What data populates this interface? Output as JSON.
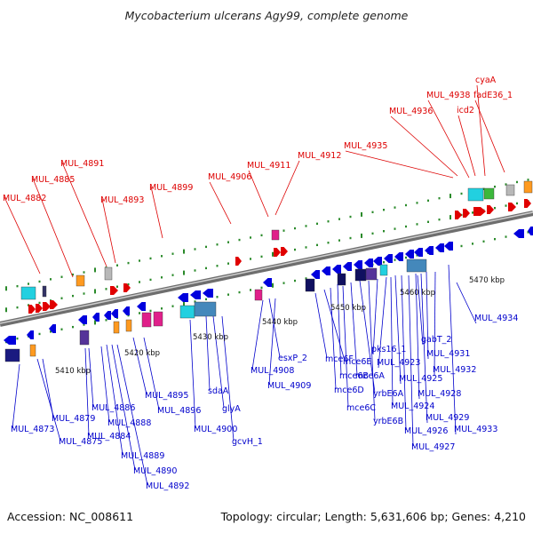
{
  "title": "Mycobacterium ulcerans Agy99, complete genome",
  "footer": {
    "accession": "Accession: NC_008611",
    "topology": "Topology: circular; Length: 5,631,606 bp; Genes: 4,210"
  },
  "colors": {
    "forward": "#dd0000",
    "reverse": "#0000cc",
    "backbone": "#808080",
    "tick": "#2a8a2a"
  },
  "scale_labels": [
    "5410 kbp",
    "5420 kbp",
    "5430 kbp",
    "5440 kbp",
    "5450 kbp",
    "5460 kbp",
    "5470 kbp"
  ],
  "forward_genes": [
    "MUL_4882",
    "MUL_4885",
    "MUL_4891",
    "MUL_4893",
    "MUL_4899",
    "MUL_4906",
    "MUL_4911",
    "MUL_4912",
    "MUL_4935",
    "MUL_4936",
    "MUL_4938",
    "cyaA",
    "icd2",
    "fadE36_1"
  ],
  "reverse_genes": [
    "MUL_4873",
    "MUL_4875",
    "MUL_4879",
    "MUL_4884",
    "MUL_4886",
    "MUL_4888",
    "MUL_4889",
    "MUL_4890",
    "MUL_4892",
    "MUL_4895",
    "MUL_4896",
    "MUL_4900",
    "sdaA",
    "glyA",
    "gcvH_1",
    "MUL_4908",
    "esxP_2",
    "MUL_4909",
    "mce6F",
    "mce6E",
    "mce6D",
    "mce6C",
    "mce6B",
    "mce6A",
    "yrbE6A",
    "yrbE6B",
    "pks16_1",
    "MUL_4923",
    "MUL_4924",
    "MUL_4925",
    "MUL_4926",
    "MUL_4927",
    "MUL_4928",
    "MUL_4929",
    "gabT_2",
    "MUL_4931",
    "MUL_4932",
    "MUL_4933",
    "MUL_4934"
  ]
}
